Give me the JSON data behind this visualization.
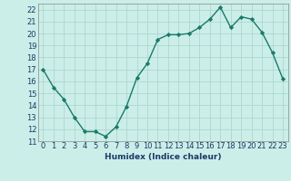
{
  "x": [
    0,
    1,
    2,
    3,
    4,
    5,
    6,
    7,
    8,
    9,
    10,
    11,
    12,
    13,
    14,
    15,
    16,
    17,
    18,
    19,
    20,
    21,
    22,
    23
  ],
  "y": [
    17.0,
    15.5,
    14.5,
    13.0,
    11.8,
    11.8,
    11.4,
    12.2,
    13.9,
    16.3,
    17.5,
    19.5,
    19.9,
    19.9,
    20.0,
    20.5,
    21.2,
    22.2,
    20.5,
    21.4,
    21.2,
    20.1,
    18.4,
    16.2
  ],
  "line_color": "#1a7a6a",
  "marker": "D",
  "markersize": 2.2,
  "linewidth": 1.0,
  "bg_color": "#cceee8",
  "grid_color": "#aad8d0",
  "xlabel": "Humidex (Indice chaleur)",
  "ylim": [
    11,
    22.5
  ],
  "xlim": [
    -0.5,
    23.5
  ],
  "yticks": [
    11,
    12,
    13,
    14,
    15,
    16,
    17,
    18,
    19,
    20,
    21,
    22
  ],
  "xticks": [
    0,
    1,
    2,
    3,
    4,
    5,
    6,
    7,
    8,
    9,
    10,
    11,
    12,
    13,
    14,
    15,
    16,
    17,
    18,
    19,
    20,
    21,
    22,
    23
  ],
  "xlabel_fontsize": 6.5,
  "tick_fontsize": 6.0,
  "label_color": "#1a3a6a"
}
